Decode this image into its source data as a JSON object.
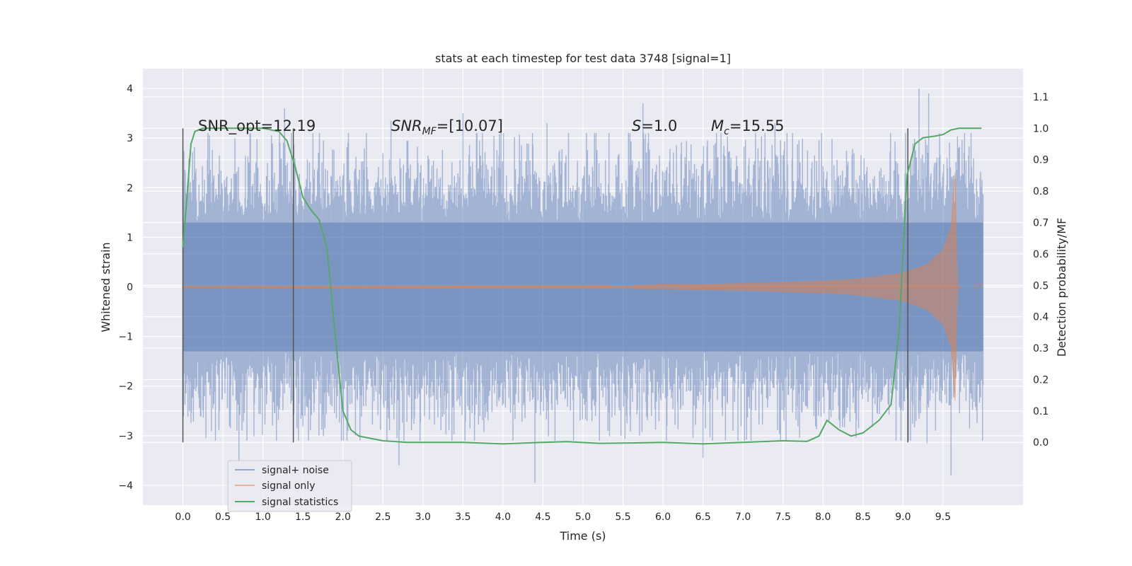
{
  "chart_data": {
    "type": "line",
    "title": "stats at each timestep for test data 3748 [signal=1]",
    "xlabel": "Time (s)",
    "ylabel_left": "Whitened strain",
    "ylabel_right": "Detection probability/MF",
    "xlim": [
      -0.5,
      10.5
    ],
    "ylim_left": [
      -4.4,
      4.4
    ],
    "ylim_right": [
      -0.2,
      1.19
    ],
    "x_ticks": [
      0.0,
      0.5,
      1.0,
      1.5,
      2.0,
      2.5,
      3.0,
      3.5,
      4.0,
      4.5,
      5.0,
      5.5,
      6.0,
      6.5,
      7.0,
      7.5,
      8.0,
      8.5,
      9.0,
      9.5
    ],
    "x_tick_labels": [
      "0.0",
      "0.5",
      "1.0",
      "1.5",
      "2.0",
      "2.5",
      "3.0",
      "3.5",
      "4.0",
      "4.5",
      "5.0",
      "5.5",
      "6.0",
      "6.5",
      "7.0",
      "7.5",
      "8.0",
      "8.5",
      "9.0",
      "9.5"
    ],
    "y_left_ticks": [
      -4,
      -3,
      -2,
      -1,
      0,
      1,
      2,
      3,
      4
    ],
    "y_left_tick_labels": [
      "−4",
      "−3",
      "−2",
      "−1",
      "0",
      "1",
      "2",
      "3",
      "4"
    ],
    "y_right_ticks": [
      0.0,
      0.1,
      0.2,
      0.3,
      0.4,
      0.5,
      0.6,
      0.7,
      0.8,
      0.9,
      1.0,
      1.1
    ],
    "y_right_tick_labels": [
      "0.0",
      "0.1",
      "0.2",
      "0.3",
      "0.4",
      "0.5",
      "0.6",
      "0.7",
      "0.8",
      "0.9",
      "1.0",
      "1.1"
    ],
    "grid": true,
    "legend_position": "lower-left",
    "series": [
      {
        "name": "signal+ noise",
        "axis": "left",
        "color": "#4c72b0",
        "description": "whitened strain, dense noise roughly between -2.5 and 2.5",
        "x_range": [
          0.0,
          10.0
        ],
        "peaks_high": [
          [
            0.03,
            2.3
          ],
          [
            0.65,
            3.0
          ],
          [
            1.27,
            3.6
          ],
          [
            2.6,
            3.35
          ],
          [
            3.5,
            3.5
          ],
          [
            4.55,
            3.3
          ],
          [
            5.75,
            3.7
          ],
          [
            7.4,
            3.3
          ],
          [
            9.2,
            4.0
          ],
          [
            9.32,
            3.9
          ],
          [
            9.55,
            2.6
          ]
        ],
        "peaks_low": [
          [
            0.7,
            -3.5
          ],
          [
            2.7,
            -3.6
          ],
          [
            4.4,
            -3.95
          ],
          [
            6.5,
            -3.45
          ],
          [
            7.1,
            -3.1
          ],
          [
            9.3,
            -3.15
          ],
          [
            9.6,
            -3.8
          ]
        ]
      },
      {
        "name": "signal only",
        "axis": "left",
        "color": "#dd8452",
        "description": "chirp signal with growing amplitude ending near t=9.65",
        "envelope": [
          [
            0.0,
            0.01
          ],
          [
            5.0,
            0.02
          ],
          [
            6.0,
            0.04
          ],
          [
            7.0,
            0.07
          ],
          [
            8.0,
            0.12
          ],
          [
            8.5,
            0.17
          ],
          [
            9.0,
            0.28
          ],
          [
            9.3,
            0.45
          ],
          [
            9.5,
            0.75
          ],
          [
            9.6,
            1.2
          ],
          [
            9.65,
            2.3
          ],
          [
            9.68,
            0.0
          ],
          [
            10.0,
            0.0
          ]
        ]
      },
      {
        "name": "signal statistics",
        "axis": "right",
        "color": "#55a868",
        "x": [
          0.0,
          0.05,
          0.1,
          0.15,
          0.25,
          0.4,
          0.6,
          0.8,
          1.0,
          1.1,
          1.2,
          1.3,
          1.4,
          1.5,
          1.6,
          1.7,
          1.8,
          1.9,
          2.0,
          2.1,
          2.2,
          2.3,
          2.5,
          2.8,
          3.2,
          3.5,
          4.0,
          4.5,
          4.8,
          5.2,
          5.6,
          6.0,
          6.5,
          7.0,
          7.5,
          7.8,
          7.95,
          8.05,
          8.1,
          8.2,
          8.35,
          8.5,
          8.7,
          8.85,
          8.95,
          9.05,
          9.15,
          9.25,
          9.4,
          9.5,
          9.6,
          9.7,
          9.9,
          9.98
        ],
        "y": [
          0.62,
          0.78,
          0.95,
          0.99,
          1.0,
          1.0,
          1.0,
          1.0,
          1.0,
          0.995,
          0.99,
          0.96,
          0.88,
          0.78,
          0.74,
          0.71,
          0.62,
          0.35,
          0.1,
          0.04,
          0.02,
          0.015,
          0.005,
          0.0,
          0.0,
          0.0,
          -0.005,
          0.0,
          0.002,
          -0.003,
          -0.002,
          0.0,
          -0.005,
          0.0,
          0.005,
          0.003,
          0.02,
          0.07,
          0.06,
          0.04,
          0.02,
          0.03,
          0.07,
          0.12,
          0.35,
          0.85,
          0.95,
          0.97,
          0.975,
          0.98,
          0.995,
          1.0,
          1.0,
          1.0
        ]
      }
    ],
    "vertical_lines_x": [
      0.0,
      1.38,
      9.06
    ],
    "annotations": [
      {
        "id": "snr-opt",
        "label": "SNR_opt=12.19",
        "x": 0.2,
        "y": 3.18
      },
      {
        "id": "snr-mf",
        "sym": "SNR",
        "sub": "MF",
        "rest": "=[10.07]",
        "x": 2.6,
        "y": 3.18
      },
      {
        "id": "stat-s",
        "sym": "S",
        "rest": "=1.0",
        "x": 5.6,
        "y": 3.18
      },
      {
        "id": "mass-c",
        "sym": "M",
        "sub": "c",
        "rest": "=15.55",
        "x": 6.6,
        "y": 3.18
      }
    ]
  }
}
